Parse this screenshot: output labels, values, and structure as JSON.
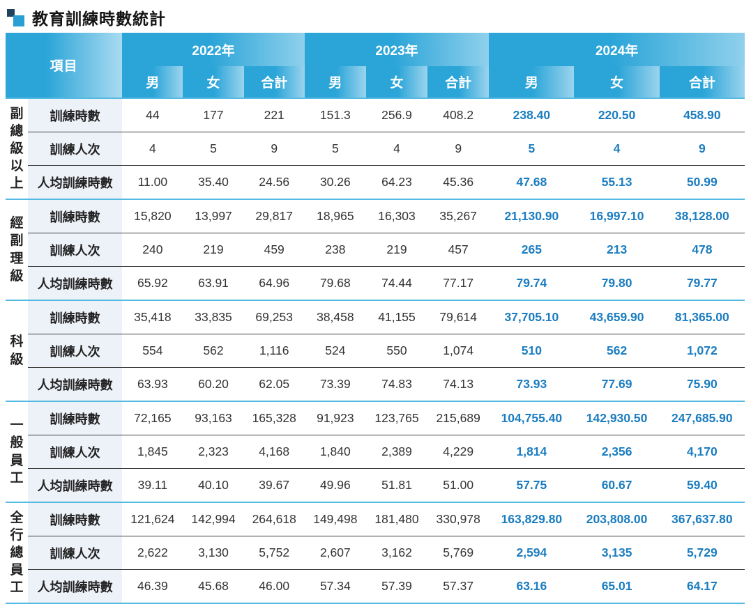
{
  "title": "教育訓練時數統計",
  "colors": {
    "header_blue": "#2ba5d8",
    "header_blue_light": "#9bd4ee",
    "group_separator_line": "#55bae2",
    "inner_row_line": "#3e3e3e",
    "row_label_bg": "#edf1f8",
    "value_text": "#333333",
    "year2024_text": "#1b7dc0",
    "icon_dark_square": "#21425e",
    "icon_blue_square": "#2a9fd3"
  },
  "chart_data": {
    "type": "table",
    "title": "教育訓練時數統計",
    "item_header": "項目",
    "column_groups": [
      "2022年",
      "2023年",
      "2024年"
    ],
    "sub_columns": [
      "男",
      "女",
      "合計"
    ],
    "row_labels": [
      "訓練時數",
      "訓練人次",
      "人均訓練時數"
    ],
    "row_groups": [
      {
        "name": "副總級以上",
        "rows": [
          [
            "44",
            "177",
            "221",
            "151.3",
            "256.9",
            "408.2",
            "238.40",
            "220.50",
            "458.90"
          ],
          [
            "4",
            "5",
            "9",
            "5",
            "4",
            "9",
            "5",
            "4",
            "9"
          ],
          [
            "11.00",
            "35.40",
            "24.56",
            "30.26",
            "64.23",
            "45.36",
            "47.68",
            "55.13",
            "50.99"
          ]
        ]
      },
      {
        "name": "經副理級",
        "rows": [
          [
            "15,820",
            "13,997",
            "29,817",
            "18,965",
            "16,303",
            "35,267",
            "21,130.90",
            "16,997.10",
            "38,128.00"
          ],
          [
            "240",
            "219",
            "459",
            "238",
            "219",
            "457",
            "265",
            "213",
            "478"
          ],
          [
            "65.92",
            "63.91",
            "64.96",
            "79.68",
            "74.44",
            "77.17",
            "79.74",
            "79.80",
            "79.77"
          ]
        ]
      },
      {
        "name": "科級",
        "rows": [
          [
            "35,418",
            "33,835",
            "69,253",
            "38,458",
            "41,155",
            "79,614",
            "37,705.10",
            "43,659.90",
            "81,365.00"
          ],
          [
            "554",
            "562",
            "1,116",
            "524",
            "550",
            "1,074",
            "510",
            "562",
            "1,072"
          ],
          [
            "63.93",
            "60.20",
            "62.05",
            "73.39",
            "74.83",
            "74.13",
            "73.93",
            "77.69",
            "75.90"
          ]
        ]
      },
      {
        "name": "一般員工",
        "rows": [
          [
            "72,165",
            "93,163",
            "165,328",
            "91,923",
            "123,765",
            "215,689",
            "104,755.40",
            "142,930.50",
            "247,685.90"
          ],
          [
            "1,845",
            "2,323",
            "4,168",
            "1,840",
            "2,389",
            "4,229",
            "1,814",
            "2,356",
            "4,170"
          ],
          [
            "39.11",
            "40.10",
            "39.67",
            "49.96",
            "51.81",
            "51.00",
            "57.75",
            "60.67",
            "59.40"
          ]
        ]
      },
      {
        "name": "全行總員工",
        "rows": [
          [
            "121,624",
            "142,994",
            "264,618",
            "149,498",
            "181,480",
            "330,978",
            "163,829.80",
            "203,808.00",
            "367,637.80"
          ],
          [
            "2,622",
            "3,130",
            "5,752",
            "2,607",
            "3,162",
            "5,769",
            "2,594",
            "3,135",
            "5,729"
          ],
          [
            "46.39",
            "45.68",
            "46.00",
            "57.34",
            "57.39",
            "57.37",
            "63.16",
            "65.01",
            "64.17"
          ]
        ]
      }
    ]
  }
}
